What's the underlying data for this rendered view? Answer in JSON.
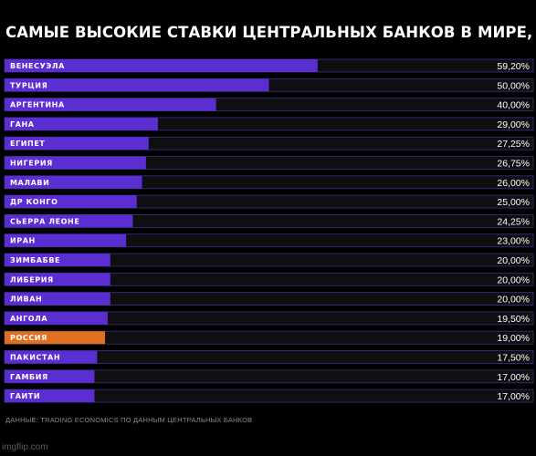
{
  "chart_data": {
    "type": "bar",
    "orientation": "horizontal",
    "title": "САМЫЕ ВЫСОКИЕ СТАВКИ ЦЕНТРАЛЬНЫХ БАНКОВ В МИРЕ, %",
    "categories": [
      "ВЕНЕСУЭЛА",
      "ТУРЦИЯ",
      "АРГЕНТИНА",
      "ГАНА",
      "ЕГИПЕТ",
      "НИГЕРИЯ",
      "МАЛАВИ",
      "ДР КОНГО",
      "СЬЕРРА ЛЕОНЕ",
      "ИРАН",
      "ЗИМБАБВЕ",
      "ЛИБЕРИЯ",
      "ЛИВАН",
      "АНГОЛА",
      "РОССИЯ",
      "ПАКИСТАН",
      "ГАМБИЯ",
      "ГАИТИ"
    ],
    "values": [
      59.2,
      50.0,
      40.0,
      29.0,
      27.25,
      26.75,
      26.0,
      25.0,
      24.25,
      23.0,
      20.0,
      20.0,
      20.0,
      19.5,
      19.0,
      17.5,
      17.0,
      17.0
    ],
    "value_labels": [
      "59,20%",
      "50,00%",
      "40,00%",
      "29,00%",
      "27,25%",
      "26,75%",
      "26,00%",
      "25,00%",
      "24,25%",
      "23,00%",
      "20,00%",
      "20,00%",
      "20,00%",
      "19,50%",
      "19,00%",
      "17,50%",
      "17,00%",
      "17,00%"
    ],
    "highlight": "РОССИЯ",
    "xlim": [
      0,
      100
    ],
    "grid": false,
    "source": "ДАННЫЕ: TRADING ECONOMICS ПО ДАННЫМ ЦЕНТРАЛЬНЫХ БАНКОВ"
  },
  "colors": {
    "background": "#000000",
    "bar": "#5a2ed1",
    "highlight_bar": "#e07020",
    "track": "#0f0f12",
    "track_outline": "#3a2f86"
  },
  "watermark": "imgflip.com"
}
